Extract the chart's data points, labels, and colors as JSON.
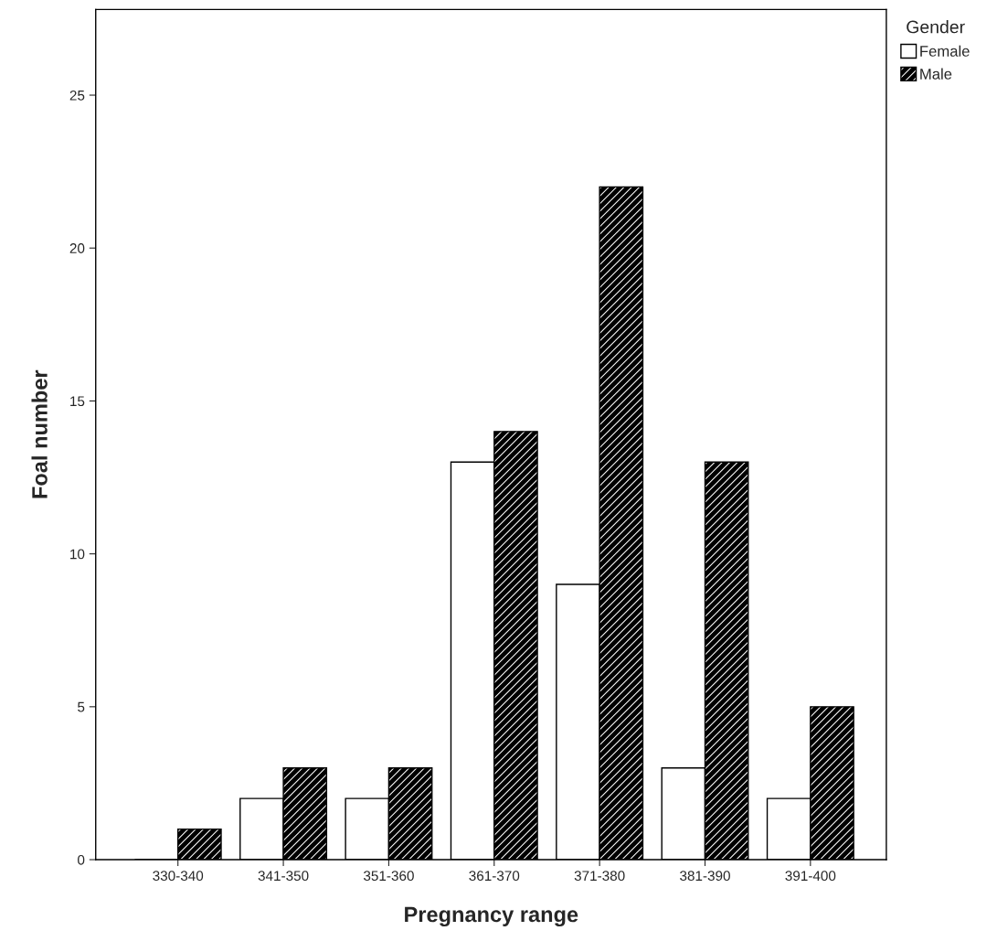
{
  "chart_data": {
    "type": "bar",
    "xlabel": "Pregnancy range",
    "ylabel": "Foal number",
    "legend_title": "Gender",
    "categories": [
      "330-340",
      "341-350",
      "351-360",
      "361-370",
      "371-380",
      "381-390",
      "391-400"
    ],
    "series": [
      {
        "name": "Female",
        "color": "#ffffff",
        "values": [
          0,
          2,
          2,
          13,
          9,
          3,
          2
        ]
      },
      {
        "name": "Male",
        "color": "#000000",
        "values": [
          1,
          3,
          3,
          14,
          22,
          13,
          5
        ]
      }
    ],
    "ylim": [
      0,
      27.8
    ],
    "yticks": [
      0,
      5,
      10,
      15,
      20,
      25
    ],
    "grid": false,
    "legend": "top right"
  }
}
